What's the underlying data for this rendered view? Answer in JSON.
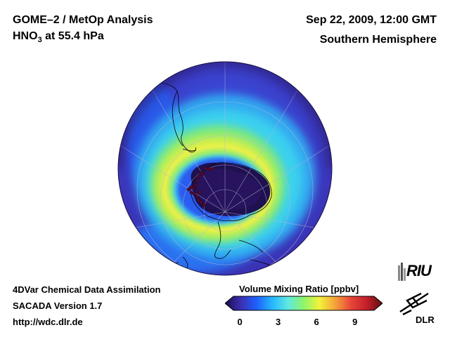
{
  "header": {
    "title_line1": "GOME–2 / MetOp Analysis",
    "species": "HNO",
    "species_sub": "3",
    "species_level": " at 55.4 hPa",
    "datetime": "Sep 22, 2009, 12:00 GMT",
    "region": "Southern Hemisphere"
  },
  "footer": {
    "line1": "4DVar Chemical Data Assimilation",
    "line2": "SACADA Version 1.7",
    "line3": "http://wdc.dlr.de"
  },
  "colorbar": {
    "title": "Volume Mixing Ratio [ppbv]",
    "ticks": [
      "0",
      "3",
      "6",
      "9"
    ],
    "tick_values": [
      0,
      3,
      6,
      9
    ],
    "min": -0.5,
    "max": 10.5,
    "colors": [
      "#1a0d4a",
      "#3b2fb0",
      "#1f5fff",
      "#26b8ff",
      "#5ee8e0",
      "#8ef56a",
      "#f2f23a",
      "#f5a23a",
      "#e8453a",
      "#c41f2a",
      "#5a1010"
    ]
  },
  "logos": {
    "riu": "RIU",
    "dlr": "DLR"
  },
  "map": {
    "projection": "orthographic, south pole centred",
    "colors": {
      "background": "#3a2fae",
      "ring_cyan": "#3ad0ef",
      "ring_green": "#7eea7a",
      "ring_yellow": "#f2f04a",
      "vortex": "#1f1050",
      "ocean_blue": "#2c64f0"
    }
  }
}
